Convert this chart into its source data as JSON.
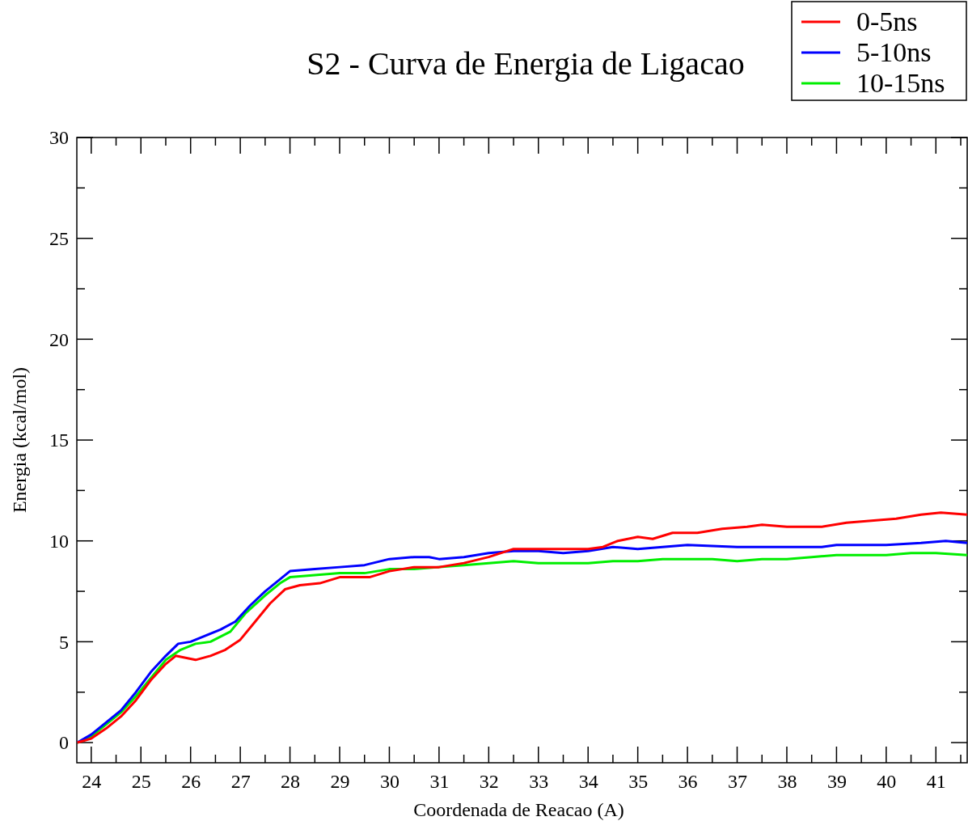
{
  "chart_data": {
    "type": "line",
    "title": "S2 - Curva de Energia de Ligacao",
    "xlabel": "Coordenada de Reacao (A)",
    "ylabel": "Energia (kcal/mol)",
    "xlim": [
      23.71,
      41.63
    ],
    "ylim": [
      -1,
      30
    ],
    "xticks": [
      24,
      {
        "value": 24.5,
        "label": null
      },
      25,
      {
        "value": 25.5,
        "label": null
      },
      26,
      {
        "value": 26.5,
        "label": null
      },
      27,
      {
        "value": 27.5,
        "label": null
      },
      28,
      {
        "value": 28.5,
        "label": null
      },
      29,
      {
        "value": 29.5,
        "label": null
      },
      30,
      {
        "value": 30.5,
        "label": null
      },
      31,
      {
        "value": 31.5,
        "label": null
      },
      32,
      {
        "value": 32.5,
        "label": null
      },
      33,
      {
        "value": 33.5,
        "label": null
      },
      34,
      {
        "value": 34.5,
        "label": null
      },
      35,
      {
        "value": 35.5,
        "label": null
      },
      36,
      {
        "value": 36.5,
        "label": null
      },
      37,
      {
        "value": 37.5,
        "label": null
      },
      38,
      {
        "value": 38.5,
        "label": null
      },
      39,
      {
        "value": 39.5,
        "label": null
      },
      40,
      {
        "value": 40.5,
        "label": null
      },
      41,
      {
        "value": 41.5,
        "label": null
      }
    ],
    "yticks": [
      0,
      {
        "value": 2.5,
        "label": null
      },
      5,
      {
        "value": 7.5,
        "label": null
      },
      10,
      {
        "value": 12.5,
        "label": null
      },
      15,
      {
        "value": 17.5,
        "label": null
      },
      20,
      {
        "value": 22.5,
        "label": null
      },
      25,
      {
        "value": 27.5,
        "label": null
      },
      30
    ],
    "grid": false,
    "legend": "top right",
    "marker": "none",
    "line_style": "solid",
    "series": [
      {
        "name": "0-5ns",
        "color": "#ff0000",
        "x": [
          23.72,
          24,
          24.3,
          24.6,
          24.9,
          25.2,
          25.5,
          25.7,
          25.9,
          26.1,
          26.4,
          26.7,
          27,
          27.3,
          27.6,
          27.9,
          28.2,
          28.6,
          29,
          29.6,
          30,
          30.5,
          31,
          31.5,
          32,
          32.5,
          33,
          33.5,
          34,
          34.3,
          34.6,
          35,
          35.3,
          35.7,
          36.2,
          36.7,
          37.2,
          37.5,
          38,
          38.7,
          39.2,
          39.7,
          40.2,
          40.7,
          41.1,
          41.63
        ],
        "values": [
          0,
          0.2,
          0.7,
          1.3,
          2.1,
          3.1,
          3.9,
          4.3,
          4.2,
          4.1,
          4.3,
          4.6,
          5.1,
          6,
          6.9,
          7.6,
          7.8,
          7.9,
          8.2,
          8.2,
          8.5,
          8.7,
          8.7,
          8.9,
          9.2,
          9.6,
          9.6,
          9.6,
          9.6,
          9.7,
          10,
          10.2,
          10.1,
          10.4,
          10.4,
          10.6,
          10.7,
          10.8,
          10.7,
          10.7,
          10.9,
          11,
          11.1,
          11.3,
          11.4,
          11.3
        ]
      },
      {
        "name": "5-10ns",
        "color": "#0000ff",
        "x": [
          23.72,
          24,
          24.3,
          24.6,
          24.9,
          25.2,
          25.5,
          25.75,
          26,
          26.3,
          26.6,
          26.9,
          27.2,
          27.5,
          27.8,
          28,
          28.5,
          29,
          29.5,
          30,
          30.5,
          30.8,
          31,
          31.5,
          32,
          32.5,
          33,
          33.5,
          34,
          34.5,
          35,
          35.5,
          36,
          37,
          38,
          38.7,
          39,
          40,
          40.7,
          41.2,
          41.63
        ],
        "values": [
          0,
          0.4,
          1,
          1.6,
          2.5,
          3.5,
          4.3,
          4.9,
          5,
          5.3,
          5.6,
          6,
          6.8,
          7.5,
          8.1,
          8.5,
          8.6,
          8.7,
          8.8,
          9.1,
          9.2,
          9.2,
          9.1,
          9.2,
          9.4,
          9.5,
          9.5,
          9.4,
          9.5,
          9.7,
          9.6,
          9.7,
          9.8,
          9.7,
          9.7,
          9.7,
          9.8,
          9.8,
          9.9,
          10,
          9.9
        ]
      },
      {
        "name": "10-15ns",
        "color": "#00ee00",
        "x": [
          23.72,
          24,
          24.3,
          24.6,
          24.9,
          25.2,
          25.5,
          25.8,
          26.1,
          26.4,
          26.8,
          27.1,
          27.5,
          27.8,
          28,
          28.5,
          29,
          29.5,
          30,
          30.5,
          31,
          31.5,
          32,
          32.5,
          33,
          34,
          34.5,
          35,
          35.5,
          36,
          36.5,
          37,
          37.5,
          38,
          38.5,
          39,
          39.5,
          40,
          40.5,
          41,
          41.63
        ],
        "values": [
          0,
          0.3,
          0.9,
          1.5,
          2.3,
          3.2,
          4.1,
          4.6,
          4.9,
          5,
          5.5,
          6.4,
          7.3,
          7.9,
          8.2,
          8.3,
          8.4,
          8.4,
          8.6,
          8.6,
          8.7,
          8.8,
          8.9,
          9,
          8.9,
          8.9,
          9,
          9,
          9.1,
          9.1,
          9.1,
          9,
          9.1,
          9.1,
          9.2,
          9.3,
          9.3,
          9.3,
          9.4,
          9.4,
          9.3
        ]
      }
    ]
  }
}
